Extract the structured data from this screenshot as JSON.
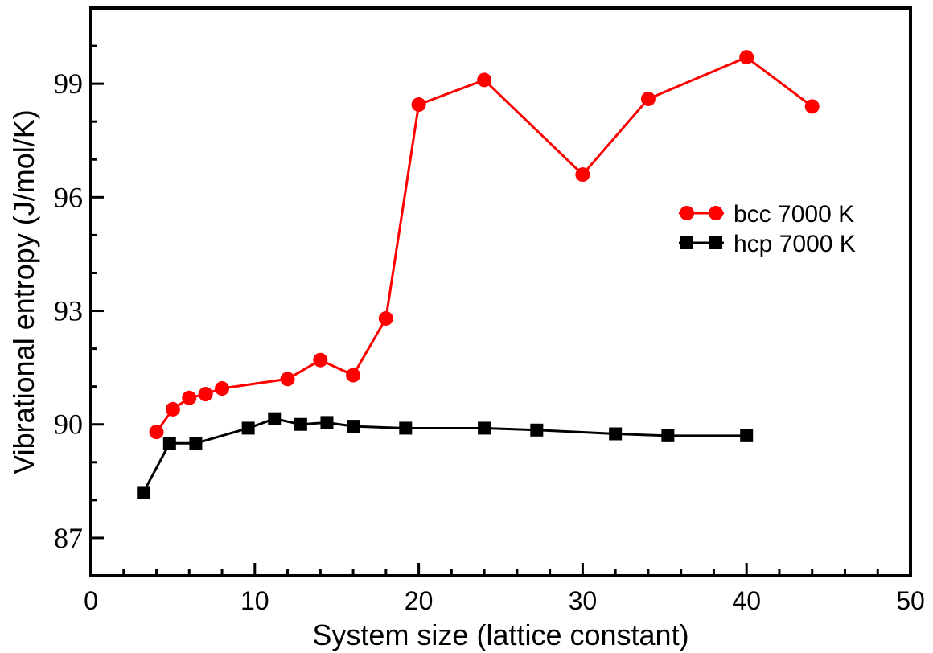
{
  "chart_data": {
    "type": "line",
    "title": "",
    "xlabel": "System size (lattice constant)",
    "ylabel": "Vibrational entropy (J/mol/K)",
    "xlim": [
      0,
      50
    ],
    "ylim": [
      86,
      101
    ],
    "xticks": [
      0,
      10,
      20,
      30,
      40,
      50
    ],
    "yticks": [
      87,
      90,
      93,
      96,
      99
    ],
    "x_minor_step": 2,
    "y_minor_step": 1,
    "grid": false,
    "legend_position": "right",
    "series": [
      {
        "name": "bcc 7000 K",
        "color": "#ff0000",
        "marker": "circle",
        "x": [
          4,
          5,
          6,
          7,
          8,
          12,
          14,
          16,
          18,
          20,
          24,
          30,
          34,
          40,
          44
        ],
        "y": [
          89.8,
          90.4,
          90.7,
          90.8,
          90.95,
          91.2,
          91.7,
          91.3,
          92.8,
          98.45,
          99.1,
          96.6,
          98.6,
          99.7,
          98.4
        ]
      },
      {
        "name": "hcp 7000 K",
        "color": "#000000",
        "marker": "square",
        "x": [
          3.2,
          4.8,
          6.4,
          9.6,
          11.2,
          12.8,
          14.4,
          16,
          19.2,
          24,
          27.2,
          32,
          35.2,
          40
        ],
        "y": [
          88.2,
          89.5,
          89.5,
          89.9,
          90.15,
          90.0,
          90.05,
          89.95,
          89.9,
          89.9,
          89.85,
          89.75,
          89.7,
          89.7
        ]
      }
    ]
  }
}
